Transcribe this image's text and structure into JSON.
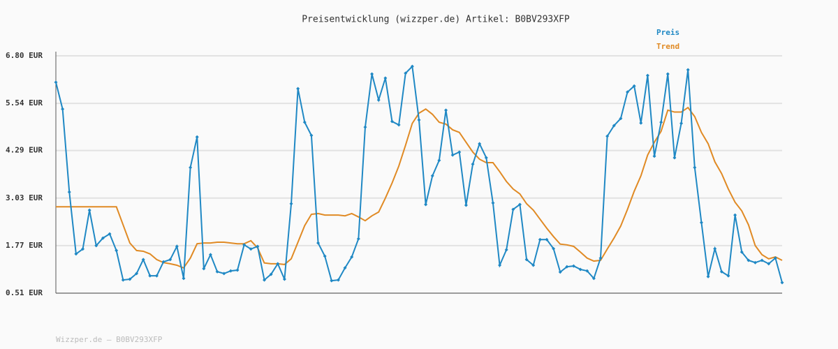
{
  "chart_data": {
    "type": "line",
    "title": "Preisentwicklung (wizzper.de) Artikel: B0BV293XFP",
    "footer": "Wizzper.de – B0BV293XFP",
    "ylim": [
      0.51,
      6.8
    ],
    "yticks": [
      {
        "value": 0.51,
        "label": "0.51 EUR"
      },
      {
        "value": 1.77,
        "label": "1.77 EUR"
      },
      {
        "value": 3.03,
        "label": "3.03 EUR"
      },
      {
        "value": 4.29,
        "label": "4.29 EUR"
      },
      {
        "value": 5.54,
        "label": "5.54 EUR"
      },
      {
        "value": 6.8,
        "label": "6.80 EUR"
      }
    ],
    "grid": true,
    "legend": "top-right",
    "series": [
      {
        "name": "Preis",
        "color": "#1f88c4",
        "markers": true,
        "values": [
          6.1,
          5.39,
          3.19,
          1.55,
          1.68,
          2.71,
          1.77,
          1.97,
          2.08,
          1.64,
          0.86,
          0.88,
          1.03,
          1.4,
          0.97,
          0.97,
          1.34,
          1.4,
          1.75,
          0.9,
          3.84,
          4.65,
          1.16,
          1.53,
          1.08,
          1.03,
          1.1,
          1.12,
          1.79,
          1.68,
          1.75,
          0.86,
          1.01,
          1.29,
          0.88,
          2.88,
          5.93,
          5.04,
          4.69,
          1.84,
          1.49,
          0.84,
          0.86,
          1.18,
          1.47,
          1.95,
          4.91,
          6.32,
          5.63,
          6.21,
          5.06,
          4.97,
          6.34,
          6.52,
          5.1,
          2.86,
          3.62,
          4.03,
          5.36,
          4.17,
          4.25,
          2.84,
          3.93,
          4.47,
          4.1,
          2.9,
          1.25,
          1.66,
          2.73,
          2.86,
          1.4,
          1.25,
          1.93,
          1.93,
          1.69,
          1.07,
          1.21,
          1.23,
          1.14,
          1.1,
          0.9,
          1.44,
          4.67,
          4.95,
          5.14,
          5.84,
          6.0,
          5.02,
          6.28,
          4.14,
          5.04,
          6.32,
          4.1,
          5.01,
          6.43,
          3.84,
          2.38,
          0.95,
          1.69,
          1.08,
          0.97,
          2.58,
          1.6,
          1.38,
          1.32,
          1.38,
          1.29,
          1.44,
          0.79
        ]
      },
      {
        "name": "Trend",
        "color": "#e08a24",
        "markers": false,
        "values": [
          2.8,
          2.8,
          2.8,
          2.8,
          2.8,
          2.8,
          2.8,
          2.8,
          2.8,
          2.8,
          2.32,
          1.84,
          1.64,
          1.62,
          1.55,
          1.4,
          1.32,
          1.29,
          1.25,
          1.18,
          1.44,
          1.82,
          1.84,
          1.84,
          1.86,
          1.86,
          1.84,
          1.82,
          1.82,
          1.9,
          1.71,
          1.31,
          1.29,
          1.29,
          1.27,
          1.42,
          1.86,
          2.3,
          2.6,
          2.62,
          2.58,
          2.58,
          2.58,
          2.56,
          2.62,
          2.53,
          2.43,
          2.56,
          2.66,
          3.03,
          3.43,
          3.88,
          4.43,
          5.01,
          5.28,
          5.39,
          5.25,
          5.04,
          4.99,
          4.84,
          4.77,
          4.51,
          4.25,
          4.06,
          3.97,
          3.97,
          3.73,
          3.47,
          3.27,
          3.14,
          2.88,
          2.71,
          2.47,
          2.23,
          2.01,
          1.81,
          1.79,
          1.75,
          1.6,
          1.44,
          1.36,
          1.38,
          1.68,
          1.97,
          2.29,
          2.73,
          3.21,
          3.62,
          4.17,
          4.51,
          4.8,
          5.36,
          5.31,
          5.31,
          5.43,
          5.19,
          4.77,
          4.47,
          3.99,
          3.68,
          3.27,
          2.92,
          2.69,
          2.32,
          1.77,
          1.53,
          1.42,
          1.47,
          1.38
        ]
      }
    ]
  }
}
